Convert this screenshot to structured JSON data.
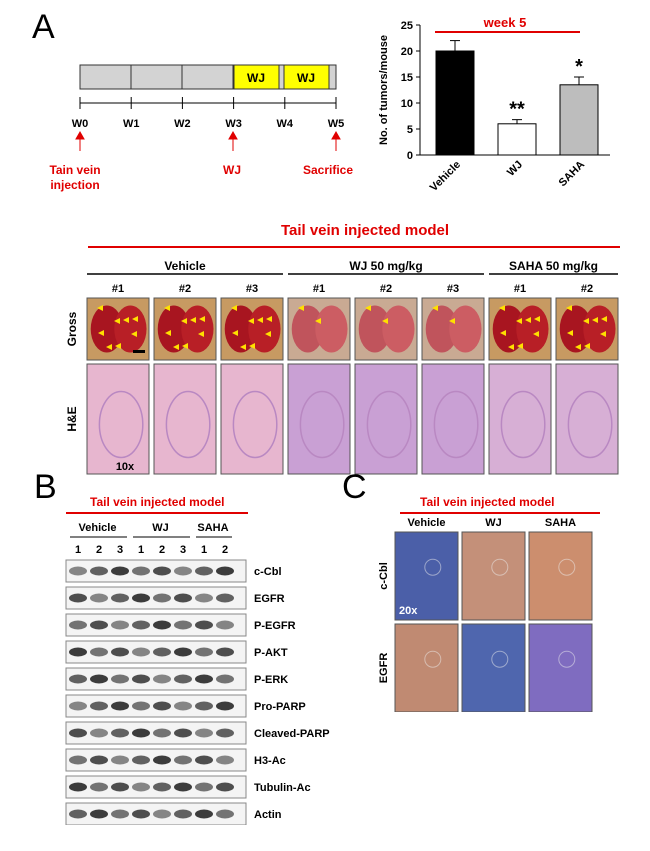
{
  "panels": {
    "a": "A",
    "b": "B",
    "c": "C"
  },
  "timeline": {
    "weeks": [
      "W0",
      "W1",
      "W2",
      "W3",
      "W4",
      "W5"
    ],
    "treatment_blocks": [
      "WJ",
      "WJ"
    ],
    "events": [
      {
        "week": "W0",
        "label": "Tain vein\ninjection"
      },
      {
        "week": "W3",
        "label": "WJ"
      },
      {
        "week": "W5",
        "label": "Sacrifice"
      }
    ]
  },
  "chart_data": {
    "type": "bar",
    "title": "week 5",
    "ylabel": "No. of tumors/mouse",
    "ylim": [
      0,
      25
    ],
    "yticks": [
      0,
      5,
      10,
      15,
      20,
      25
    ],
    "categories": [
      "Vehicle",
      "WJ",
      "SAHA"
    ],
    "values": [
      20,
      6,
      13.5
    ],
    "errors": [
      2,
      0.8,
      1.5
    ],
    "significance": [
      "",
      "**",
      "*"
    ],
    "colors": [
      "#000000",
      "#ffffff",
      "#bdbdbd"
    ]
  },
  "model_title": "Tail vein injected model",
  "groups": [
    {
      "name": "Vehicle",
      "samples": [
        "#1",
        "#2",
        "#3"
      ]
    },
    {
      "name": "WJ 50 mg/kg",
      "samples": [
        "#1",
        "#2",
        "#3"
      ]
    },
    {
      "name": "SAHA 50 mg/kg",
      "samples": [
        "#1",
        "#2"
      ]
    }
  ],
  "row_labels": [
    "Gross",
    "H&E"
  ],
  "he_magnification": "10x",
  "western": {
    "title": "Tail vein injected model",
    "groups": [
      {
        "name": "Vehicle",
        "lanes": [
          "1",
          "2",
          "3"
        ]
      },
      {
        "name": "WJ",
        "lanes": [
          "1",
          "2",
          "3"
        ]
      },
      {
        "name": "SAHA",
        "lanes": [
          "1",
          "2"
        ]
      }
    ],
    "proteins": [
      "c-Cbl",
      "EGFR",
      "P-EGFR",
      "P-AKT",
      "P-ERK",
      "Pro-PARP",
      "Cleaved-PARP",
      "H3-Ac",
      "Tubulin-Ac",
      "Actin"
    ]
  },
  "ihc": {
    "title": "Tail vein injected model",
    "columns": [
      "Vehicle",
      "WJ",
      "SAHA"
    ],
    "rows": [
      "c-Cbl",
      "EGFR"
    ],
    "magnification": "20x"
  }
}
